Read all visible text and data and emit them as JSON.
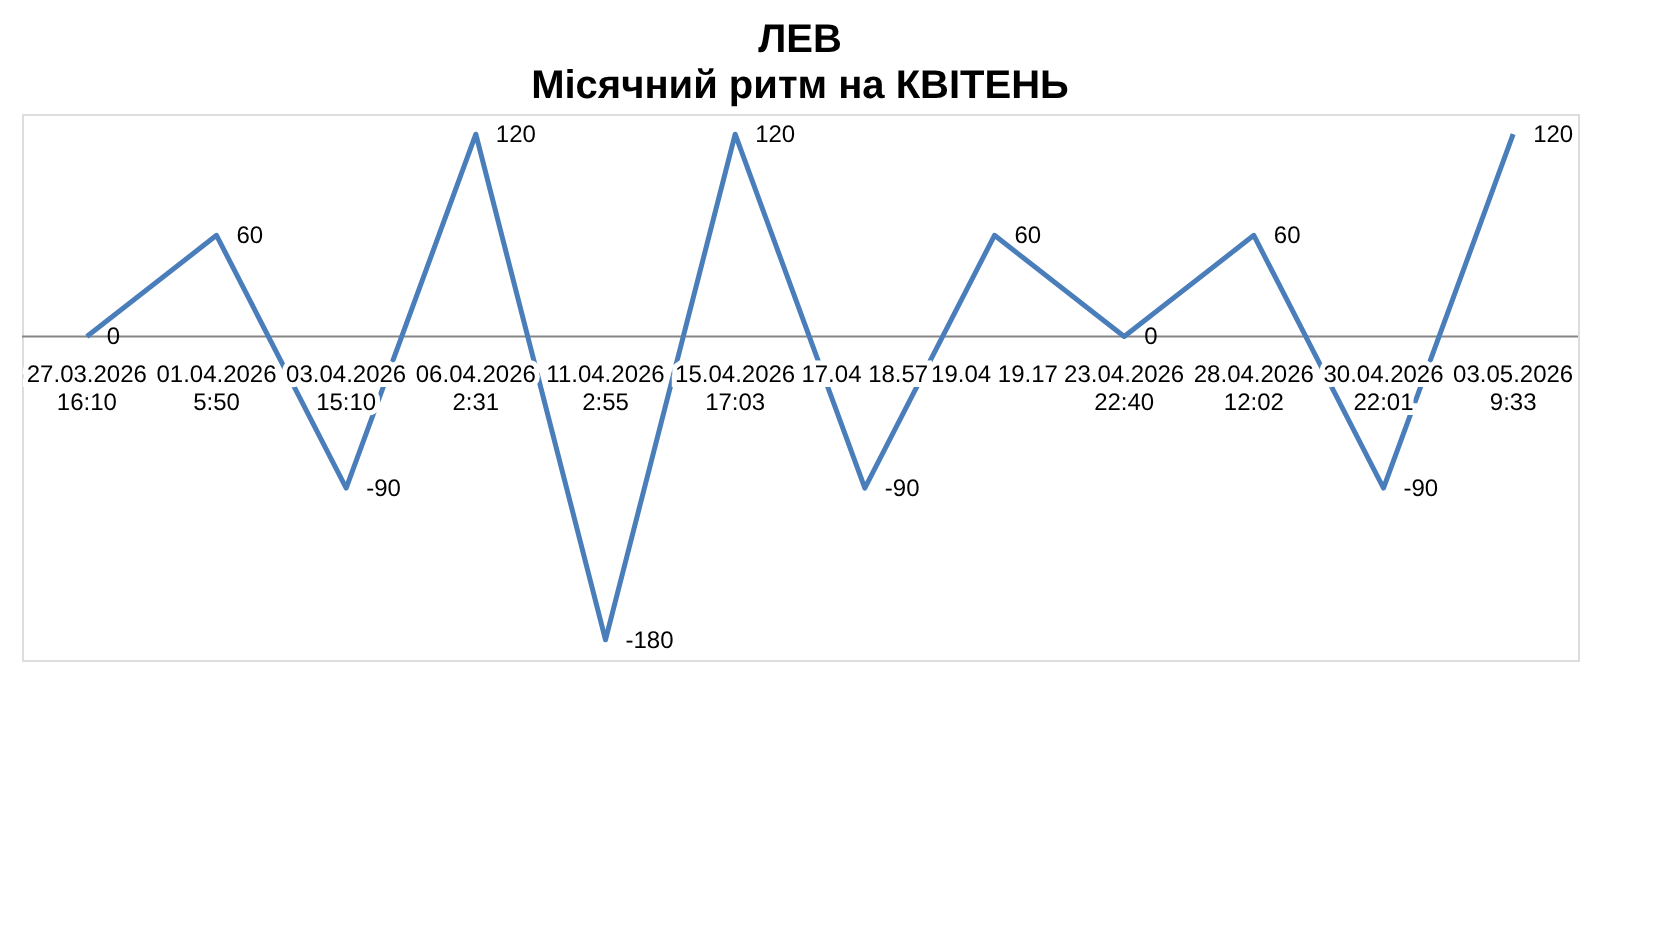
{
  "chart_data": {
    "type": "line",
    "title": "ЛЕВ",
    "subtitle": "Місячний ритм на КВІТЕНЬ",
    "categories": [
      "27.03.2026 16:10",
      "01.04.2026 5:50",
      "03.04.2026 15:10",
      "06.04.2026 2:31",
      "11.04.2026 2:55",
      "15.04.2026 17:03",
      "17.04 18.57",
      "19.04 19.17",
      "23.04.2026 22:40",
      "28.04.2026 12:02",
      "30.04.2026 22:01",
      "03.05.2026 9:33"
    ],
    "series": [
      {
        "color": "#4a7ebb",
        "values": [
          0,
          60,
          -90,
          120,
          -180,
          120,
          -90,
          60,
          0,
          60,
          -90,
          120
        ]
      }
    ],
    "data_labels": true,
    "grid": false,
    "marker": "none",
    "line_style": "solid"
  }
}
